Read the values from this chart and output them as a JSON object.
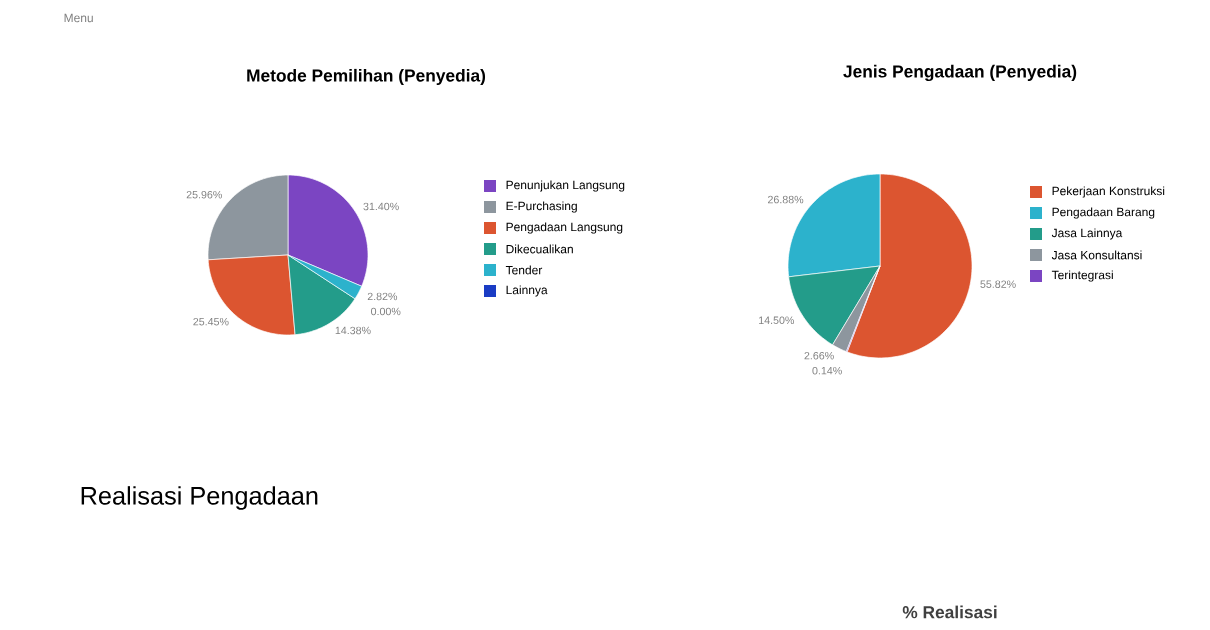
{
  "chart_data": [
    {
      "type": "pie",
      "title": "Metode Pemilihan (Penyedia)",
      "categories": [
        "Penunjukan Langsung",
        "E-Purchasing",
        "Pengadaan Langsung",
        "Dikecualikan",
        "Tender",
        "Lainnya"
      ],
      "values": [
        31.4,
        25.96,
        25.45,
        14.38,
        2.82,
        0.0
      ],
      "value_labels": [
        "31.40%",
        "25.96%",
        "25.45%",
        "14.38%",
        "2.82%",
        "0.00%"
      ],
      "colors": [
        "#7b45c2",
        "#8d969e",
        "#dc5530",
        "#239c8a",
        "#2cb2cc",
        "#1a3cc4"
      ],
      "legend": "right",
      "annotations": [
        "Menu",
        "Realisasi Pengadaan"
      ]
    },
    {
      "type": "pie",
      "title": "Jenis Pengadaan (Penyedia)",
      "categories": [
        "Pekerjaan Konstruksi",
        "Pengadaan Barang",
        "Jasa Lainnya",
        "Jasa Konsultansi",
        "Terintegrasi"
      ],
      "values": [
        55.82,
        26.88,
        14.5,
        2.66,
        0.14
      ],
      "value_labels": [
        "55.82%",
        "26.88%",
        "14.50%",
        "2.66%",
        "0.14%"
      ],
      "colors": [
        "#dc5530",
        "#2cb2cc",
        "#239c8a",
        "#8d969e",
        "#7b45c2"
      ],
      "legend": "right",
      "annotations": [
        "% Realisasi"
      ]
    }
  ]
}
